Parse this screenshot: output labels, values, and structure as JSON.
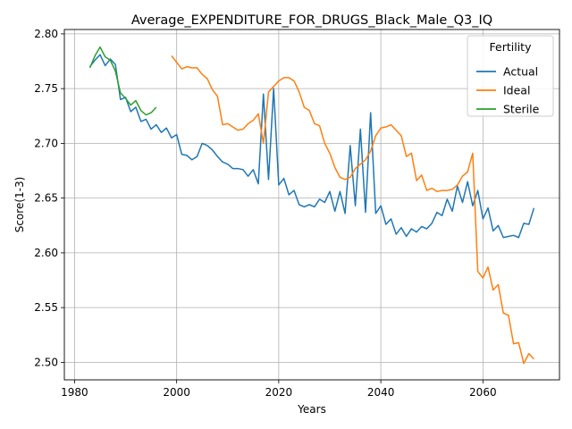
{
  "chart_data": {
    "type": "line",
    "title": "Average_EXPENDITURE_FOR_DRUGS_Black_Male_Q3_IQ",
    "xlabel": "Years",
    "ylabel": "Score(1-3)",
    "xlim": [
      1978,
      2075
    ],
    "ylim": [
      2.484,
      2.804
    ],
    "xticks": [
      1980,
      2000,
      2020,
      2040,
      2060
    ],
    "yticks": [
      2.5,
      2.55,
      2.6,
      2.65,
      2.7,
      2.75,
      2.8
    ],
    "ytick_labels": [
      "2.50",
      "2.55",
      "2.60",
      "2.65",
      "2.70",
      "2.75",
      "2.80"
    ],
    "grid": true,
    "legend": {
      "title": "Fertility",
      "placement": "top-right"
    },
    "series": [
      {
        "name": "Actual",
        "color": "#1f77b4",
        "x": [
          1983,
          1984,
          1985,
          1986,
          1987,
          1988,
          1989,
          1990,
          1991,
          1992,
          1993,
          1994,
          1995,
          1996,
          1997,
          1998,
          1999,
          2000,
          2001,
          2002,
          2003,
          2004,
          2005,
          2006,
          2007,
          2008,
          2009,
          2010,
          2011,
          2012,
          2013,
          2014,
          2015,
          2016,
          2017,
          2018,
          2019,
          2020,
          2021,
          2022,
          2023,
          2024,
          2025,
          2026,
          2027,
          2028,
          2029,
          2030,
          2031,
          2032,
          2033,
          2034,
          2035,
          2036,
          2037,
          2038,
          2039,
          2040,
          2041,
          2042,
          2043,
          2044,
          2045,
          2046,
          2047,
          2048,
          2049,
          2050,
          2051,
          2052,
          2053,
          2054,
          2055,
          2056,
          2057,
          2058,
          2059,
          2060,
          2061,
          2062,
          2063,
          2064,
          2065,
          2066,
          2067,
          2068,
          2069,
          2070
        ],
        "y": [
          2.77,
          2.776,
          2.781,
          2.771,
          2.777,
          2.772,
          2.74,
          2.742,
          2.729,
          2.733,
          2.72,
          2.722,
          2.713,
          2.717,
          2.71,
          2.714,
          2.705,
          2.708,
          2.69,
          2.689,
          2.685,
          2.688,
          2.7,
          2.698,
          2.694,
          2.688,
          2.683,
          2.681,
          2.677,
          2.677,
          2.676,
          2.67,
          2.676,
          2.663,
          2.745,
          2.667,
          2.75,
          2.662,
          2.668,
          2.653,
          2.657,
          2.644,
          2.642,
          2.644,
          2.642,
          2.649,
          2.646,
          2.656,
          2.638,
          2.656,
          2.636,
          2.698,
          2.643,
          2.713,
          2.637,
          2.728,
          2.636,
          2.643,
          2.626,
          2.631,
          2.617,
          2.623,
          2.615,
          2.622,
          2.619,
          2.624,
          2.622,
          2.627,
          2.637,
          2.634,
          2.649,
          2.638,
          2.661,
          2.646,
          2.665,
          2.643,
          2.657,
          2.631,
          2.641,
          2.62,
          2.625,
          2.614,
          2.615,
          2.616,
          2.614,
          2.627,
          2.626,
          2.641
        ]
      },
      {
        "name": "Ideal",
        "color": "#ff7f0e",
        "x": [
          1999,
          2000,
          2001,
          2002,
          2003,
          2004,
          2005,
          2006,
          2007,
          2008,
          2009,
          2010,
          2011,
          2012,
          2013,
          2014,
          2015,
          2016,
          2017,
          2018,
          2019,
          2020,
          2021,
          2022,
          2023,
          2024,
          2025,
          2026,
          2027,
          2028,
          2029,
          2030,
          2031,
          2032,
          2033,
          2034,
          2035,
          2036,
          2037,
          2038,
          2039,
          2040,
          2041,
          2042,
          2043,
          2044,
          2045,
          2046,
          2047,
          2048,
          2049,
          2050,
          2051,
          2052,
          2053,
          2054,
          2055,
          2056,
          2057,
          2058,
          2059,
          2060,
          2061,
          2062,
          2063,
          2064,
          2065,
          2066,
          2067,
          2068,
          2069,
          2070
        ],
        "y": [
          2.78,
          2.774,
          2.768,
          2.77,
          2.769,
          2.769,
          2.763,
          2.759,
          2.749,
          2.743,
          2.717,
          2.718,
          2.715,
          2.712,
          2.713,
          2.718,
          2.721,
          2.727,
          2.7,
          2.747,
          2.752,
          2.757,
          2.76,
          2.76,
          2.757,
          2.747,
          2.733,
          2.73,
          2.718,
          2.716,
          2.7,
          2.691,
          2.678,
          2.669,
          2.667,
          2.669,
          2.677,
          2.681,
          2.685,
          2.693,
          2.707,
          2.714,
          2.715,
          2.717,
          2.712,
          2.707,
          2.688,
          2.691,
          2.666,
          2.671,
          2.657,
          2.659,
          2.656,
          2.657,
          2.657,
          2.658,
          2.662,
          2.67,
          2.674,
          2.691,
          2.583,
          2.577,
          2.587,
          2.566,
          2.571,
          2.545,
          2.543,
          2.517,
          2.518,
          2.499,
          2.508,
          2.503
        ]
      },
      {
        "name": "Sterile",
        "color": "#2ca02c",
        "x": [
          1983,
          1984,
          1985,
          1986,
          1987,
          1988,
          1989,
          1990,
          1991,
          1992,
          1993,
          1994,
          1995,
          1996
        ],
        "y": [
          2.769,
          2.78,
          2.788,
          2.779,
          2.776,
          2.766,
          2.746,
          2.741,
          2.735,
          2.739,
          2.73,
          2.726,
          2.728,
          2.733
        ]
      }
    ]
  }
}
